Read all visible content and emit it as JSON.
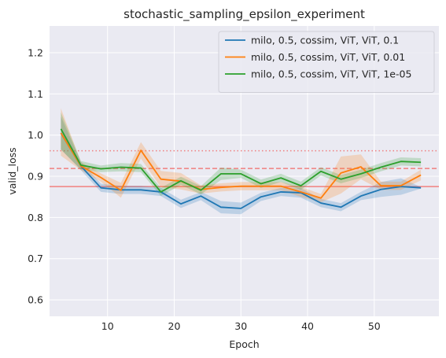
{
  "chart_data": {
    "type": "line",
    "title": "stochastic_sampling_epsilon_experiment",
    "xlabel": "Epoch",
    "ylabel": "valid_loss",
    "xlim": [
      1.3,
      59.7
    ],
    "ylim": [
      0.56,
      1.265
    ],
    "xticks": [
      10,
      20,
      30,
      40,
      50
    ],
    "yticks": [
      0.6,
      0.7,
      0.8,
      0.9,
      1.0,
      1.1,
      1.2
    ],
    "grid": true,
    "legend_position": "top-right",
    "x": [
      3,
      6,
      9,
      12,
      15,
      18,
      21,
      24,
      27,
      30,
      33,
      36,
      39,
      42,
      45,
      48,
      51,
      54,
      57
    ],
    "series": [
      {
        "name": "milo, 0.5, cossim, ViT, ViT, 0.1",
        "color": "#1f77b4",
        "values": [
          1.005,
          0.925,
          0.872,
          0.867,
          0.867,
          0.862,
          0.833,
          0.852,
          0.825,
          0.822,
          0.85,
          0.862,
          0.86,
          0.835,
          0.825,
          0.852,
          0.868,
          0.875,
          0.872
        ],
        "lower": [
          0.965,
          0.915,
          0.862,
          0.857,
          0.857,
          0.852,
          0.823,
          0.842,
          0.81,
          0.808,
          0.84,
          0.852,
          0.848,
          0.825,
          0.815,
          0.842,
          0.85,
          0.855,
          0.87
        ],
        "upper": [
          1.045,
          0.935,
          0.882,
          0.877,
          0.877,
          0.872,
          0.843,
          0.862,
          0.84,
          0.836,
          0.86,
          0.872,
          0.872,
          0.845,
          0.835,
          0.862,
          0.886,
          0.895,
          0.874
        ]
      },
      {
        "name": "milo, 0.5, cossim, ViT, ViT, 0.01",
        "color": "#ff7f0e",
        "values": [
          1.005,
          0.925,
          0.897,
          0.866,
          0.963,
          0.893,
          0.888,
          0.868,
          0.873,
          0.876,
          0.876,
          0.876,
          0.862,
          0.847,
          0.908,
          0.923,
          0.877,
          0.877,
          0.903
        ],
        "lower": [
          0.95,
          0.915,
          0.887,
          0.848,
          0.943,
          0.873,
          0.868,
          0.858,
          0.863,
          0.866,
          0.866,
          0.866,
          0.85,
          0.837,
          0.858,
          0.893,
          0.867,
          0.867,
          0.89
        ],
        "upper": [
          1.065,
          0.935,
          0.907,
          0.884,
          0.983,
          0.913,
          0.908,
          0.878,
          0.883,
          0.886,
          0.886,
          0.886,
          0.874,
          0.857,
          0.948,
          0.953,
          0.887,
          0.887,
          0.916
        ]
      },
      {
        "name": "milo, 0.5, cossim, ViT, ViT, 1e-05",
        "color": "#2ca02c",
        "values": [
          1.015,
          0.927,
          0.918,
          0.922,
          0.92,
          0.862,
          0.889,
          0.866,
          0.906,
          0.906,
          0.882,
          0.896,
          0.877,
          0.912,
          0.893,
          0.906,
          0.922,
          0.936,
          0.934
        ],
        "lower": [
          0.965,
          0.917,
          0.91,
          0.912,
          0.91,
          0.852,
          0.879,
          0.856,
          0.891,
          0.896,
          0.872,
          0.886,
          0.867,
          0.902,
          0.883,
          0.896,
          0.912,
          0.926,
          0.924
        ],
        "upper": [
          1.055,
          0.937,
          0.926,
          0.932,
          0.93,
          0.872,
          0.899,
          0.876,
          0.921,
          0.916,
          0.892,
          0.906,
          0.887,
          0.922,
          0.903,
          0.916,
          0.932,
          0.946,
          0.944
        ]
      }
    ],
    "reference_lines": [
      {
        "y": 0.875,
        "style": "solid",
        "color": "#f08080"
      },
      {
        "y": 0.919,
        "style": "dashed",
        "color": "#f08080"
      },
      {
        "y": 0.962,
        "style": "dotted",
        "color": "#f08080"
      }
    ],
    "colors": {
      "plot_background": "#eaeaf2",
      "grid": "#ffffff"
    }
  }
}
